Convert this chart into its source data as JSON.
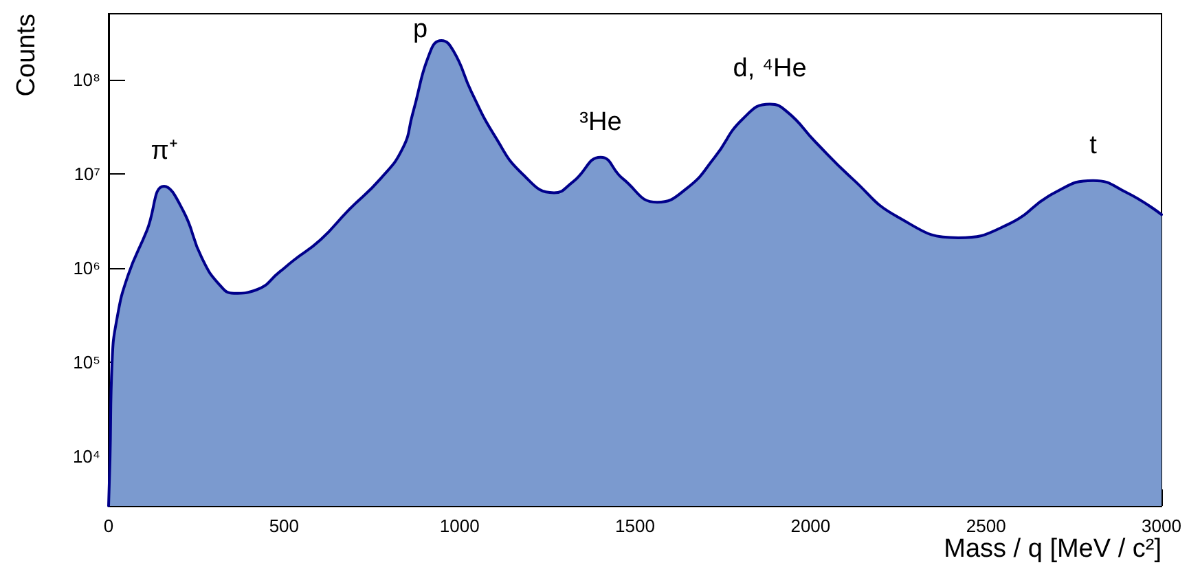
{
  "chart_data": {
    "type": "area",
    "xlabel": "Mass / q [MeV / c²]",
    "ylabel": "Counts",
    "x": [
      0,
      4,
      10,
      23,
      55,
      109,
      158,
      212,
      265,
      317,
      357,
      422,
      487,
      526,
      604,
      683,
      775,
      839,
      866,
      917,
      948,
      983,
      1034,
      1101,
      1179,
      1269,
      1324,
      1402,
      1465,
      1563,
      1649,
      1727,
      1806,
      1884,
      1935,
      2013,
      2119,
      2248,
      2421,
      2562,
      2695,
      2805,
      2902,
      3000
    ],
    "series": [
      {
        "color": "#7b9acf",
        "values": [
          3000,
          9300,
          100000,
          280000,
          830000,
          2500000,
          7400000,
          4100000,
          1300000,
          660000,
          540000,
          590000,
          910000,
          1200000,
          2000000,
          4100000,
          8900000,
          19000000,
          43000000,
          200000000,
          260000000,
          200000000,
          74000000,
          25000000,
          10000000,
          6300000,
          8300000,
          15000000,
          8900000,
          5000000,
          7100000,
          15000000,
          38000000,
          55000000,
          45000000,
          22000000,
          8900000,
          3500000,
          2100000,
          2900000,
          6300000,
          8500000,
          6300000,
          3700000
        ]
      }
    ],
    "log": "y",
    "xlim": [
      0,
      3000
    ],
    "xticks": [
      0,
      500,
      1000,
      1500,
      2000,
      2500,
      3000
    ],
    "ylim": [
      3000,
      500000000
    ],
    "yticks": [
      {
        "value": 10000,
        "label": "10⁴"
      },
      {
        "value": 100000,
        "label": "10⁵"
      },
      {
        "value": 1000000,
        "label": "10⁶"
      },
      {
        "value": 10000000,
        "label": "10⁷"
      },
      {
        "value": 100000000,
        "label": "10⁸"
      }
    ],
    "annotations": [
      "π⁺",
      "p",
      "³He",
      "d, ⁴He",
      "t"
    ],
    "grid": false,
    "marker": "none"
  }
}
